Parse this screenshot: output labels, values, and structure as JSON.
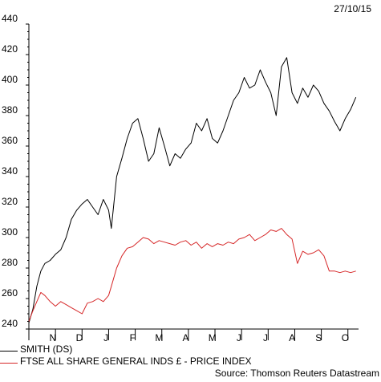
{
  "date_stamp": "27/10/15",
  "source": "Source: Thomson Reuters Datastream",
  "chart_data": {
    "type": "line",
    "title": "",
    "xlabel": "",
    "ylabel": "",
    "ylim": [
      240,
      440
    ],
    "yticks": [
      240,
      260,
      280,
      300,
      320,
      340,
      360,
      380,
      400,
      420,
      440
    ],
    "xlim": [
      0,
      12.4
    ],
    "month_labels": [
      "N",
      "D",
      "J",
      "F",
      "M",
      "A",
      "M",
      "J",
      "J",
      "A",
      "S",
      "O"
    ],
    "x_unit": "months from late Oct 2014",
    "grid": false,
    "legend_position": "bottom-left",
    "series": [
      {
        "name": "SMITH (DS)",
        "color": "#000000",
        "x": [
          0,
          0.15,
          0.3,
          0.45,
          0.6,
          0.8,
          1.0,
          1.2,
          1.4,
          1.6,
          1.8,
          2.0,
          2.2,
          2.4,
          2.6,
          2.8,
          3.0,
          3.1,
          3.3,
          3.5,
          3.7,
          3.9,
          4.1,
          4.3,
          4.5,
          4.7,
          4.9,
          5.1,
          5.3,
          5.5,
          5.7,
          5.9,
          6.1,
          6.3,
          6.5,
          6.7,
          6.9,
          7.1,
          7.3,
          7.5,
          7.7,
          7.9,
          8.1,
          8.3,
          8.5,
          8.7,
          8.9,
          9.1,
          9.3,
          9.5,
          9.7,
          9.9,
          10.1,
          10.3,
          10.5,
          10.7,
          10.9,
          11.1,
          11.3,
          11.5,
          11.7,
          11.9,
          12.1,
          12.3
        ],
        "values": [
          244,
          253,
          268,
          278,
          283,
          285,
          289,
          292,
          300,
          312,
          318,
          322,
          325,
          320,
          315,
          325,
          318,
          306,
          340,
          352,
          365,
          375,
          378,
          365,
          350,
          355,
          372,
          360,
          347,
          355,
          352,
          358,
          362,
          375,
          370,
          378,
          365,
          362,
          370,
          380,
          390,
          395,
          405,
          398,
          400,
          410,
          402,
          395,
          380,
          412,
          418,
          395,
          388,
          398,
          392,
          400,
          396,
          388,
          383,
          376,
          370,
          378,
          384,
          392
        ]
      },
      {
        "name": "FTSE ALL SHARE GENERAL INDS £ - PRICE INDEX",
        "color": "#d62728",
        "x": [
          0,
          0.15,
          0.3,
          0.45,
          0.6,
          0.8,
          1.0,
          1.2,
          1.4,
          1.6,
          1.8,
          2.0,
          2.2,
          2.4,
          2.6,
          2.8,
          3.0,
          3.1,
          3.3,
          3.5,
          3.7,
          3.9,
          4.1,
          4.3,
          4.5,
          4.7,
          4.9,
          5.1,
          5.3,
          5.5,
          5.7,
          5.9,
          6.1,
          6.3,
          6.5,
          6.7,
          6.9,
          7.1,
          7.3,
          7.5,
          7.7,
          7.9,
          8.1,
          8.3,
          8.5,
          8.7,
          8.9,
          9.1,
          9.3,
          9.5,
          9.7,
          9.9,
          10.1,
          10.3,
          10.5,
          10.7,
          10.9,
          11.1,
          11.3,
          11.5,
          11.7,
          11.9,
          12.1,
          12.3
        ],
        "values": [
          245,
          252,
          258,
          264,
          262,
          258,
          255,
          258,
          256,
          254,
          252,
          250,
          257,
          258,
          260,
          258,
          262,
          268,
          280,
          288,
          293,
          294,
          297,
          300,
          299,
          296,
          298,
          297,
          296,
          295,
          297,
          298,
          295,
          297,
          293,
          296,
          294,
          296,
          295,
          297,
          296,
          299,
          300,
          302,
          298,
          300,
          302,
          305,
          304,
          306,
          302,
          299,
          283,
          291,
          289,
          290,
          292,
          288,
          278,
          278,
          277,
          278,
          277,
          278
        ]
      }
    ]
  }
}
